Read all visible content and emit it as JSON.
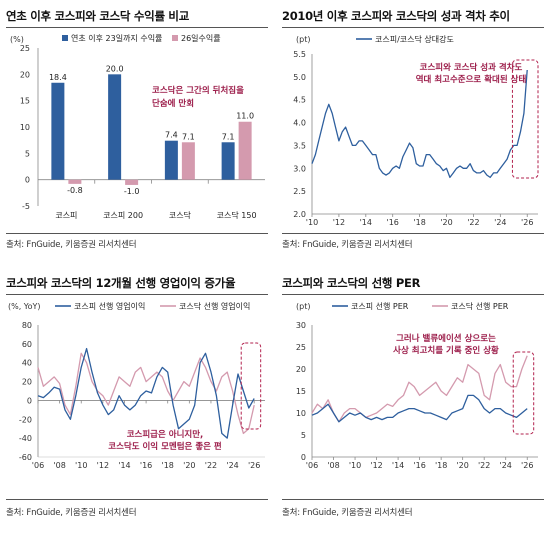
{
  "panels": [
    {
      "title": "연초 이후 코스피와 코스닥 수익률 비교",
      "source": "출처: FnGuide, 키움증권 리서치센터"
    },
    {
      "title": "2010년 이후 코스피와 코스닥의 성과 격차 추이",
      "source": "출처: FnGuide, 키움증권 리서치센터"
    },
    {
      "title": "코스피와 코스닥의 12개월 선행 영업이익 증가율",
      "source": "출처: FnGuide, 키움증권 리서치센터"
    },
    {
      "title": "코스피와 코스닥의 선행 PER",
      "source": "출처: FnGuide, 키움증권 리서치센터"
    }
  ],
  "colors": {
    "blue": "#2e5f9e",
    "pink": "#d49aae",
    "annotation": "#9c1d4a",
    "box": "#b2224e"
  },
  "chart_data": [
    {
      "type": "bar",
      "unit_label": "(%)",
      "categories": [
        "코스피",
        "코스피 200",
        "코스닥",
        "코스닥 150"
      ],
      "series": [
        {
          "name": "연초 이후 23일까지 수익률",
          "values": [
            18.4,
            20.0,
            7.4,
            7.1
          ],
          "labels": [
            "18.4",
            "20.0",
            "7.4",
            "7.1"
          ]
        },
        {
          "name": "26일수익률",
          "values": [
            -0.8,
            -1.0,
            7.1,
            11.0
          ],
          "labels": [
            "-0.8",
            "-1.0",
            "7.1",
            "11.0"
          ]
        }
      ],
      "ylim": [
        -5,
        25
      ],
      "yticks": [
        "-5",
        "0",
        "5",
        "10",
        "15",
        "20",
        "25"
      ],
      "annotation": "코스닥은 그간의 뒤처짐을\n단숨에 만회",
      "legend": "top"
    },
    {
      "type": "line",
      "unit_label": "(pt)",
      "series": [
        {
          "name": "코스피/코스닥 상대강도",
          "x": [
            2010.0,
            2010.25,
            2010.5,
            2010.75,
            2011.0,
            2011.25,
            2011.5,
            2011.75,
            2012.0,
            2012.25,
            2012.5,
            2012.75,
            2013.0,
            2013.25,
            2013.5,
            2013.75,
            2014.0,
            2014.25,
            2014.5,
            2014.75,
            2015.0,
            2015.25,
            2015.5,
            2015.75,
            2016.0,
            2016.25,
            2016.5,
            2016.75,
            2017.0,
            2017.25,
            2017.5,
            2017.75,
            2018.0,
            2018.25,
            2018.5,
            2018.75,
            2019.0,
            2019.25,
            2019.5,
            2019.75,
            2020.0,
            2020.25,
            2020.5,
            2020.75,
            2021.0,
            2021.25,
            2021.5,
            2021.75,
            2022.0,
            2022.25,
            2022.5,
            2022.75,
            2023.0,
            2023.25,
            2023.5,
            2023.75,
            2024.0,
            2024.25,
            2024.5,
            2024.75,
            2025.0,
            2025.25,
            2025.5,
            2025.75,
            2026.0
          ],
          "values": [
            3.1,
            3.3,
            3.6,
            3.9,
            4.2,
            4.4,
            4.2,
            3.9,
            3.6,
            3.8,
            3.9,
            3.7,
            3.5,
            3.5,
            3.6,
            3.6,
            3.5,
            3.4,
            3.3,
            3.3,
            3.0,
            2.9,
            2.85,
            2.9,
            3.0,
            3.05,
            3.0,
            3.25,
            3.4,
            3.55,
            3.45,
            3.1,
            3.05,
            3.05,
            3.3,
            3.3,
            3.2,
            3.1,
            3.05,
            2.95,
            3.0,
            2.8,
            2.9,
            3.0,
            3.05,
            3.0,
            3.0,
            3.1,
            2.95,
            2.9,
            2.9,
            2.95,
            2.85,
            2.8,
            2.9,
            2.9,
            3.0,
            3.1,
            3.2,
            3.4,
            3.5,
            3.5,
            3.8,
            4.2,
            5.15
          ]
        }
      ],
      "ylim": [
        2.0,
        5.5
      ],
      "yticks": [
        "2.0",
        "2.5",
        "3.0",
        "3.5",
        "4.0",
        "4.5",
        "5.0",
        "5.5"
      ],
      "xlim": [
        2010,
        2026.8
      ],
      "xticks": [
        {
          "v": 2010,
          "l": "'10"
        },
        {
          "v": 2012,
          "l": "'12"
        },
        {
          "v": 2014,
          "l": "'14"
        },
        {
          "v": 2016,
          "l": "'16"
        },
        {
          "v": 2018,
          "l": "'18"
        },
        {
          "v": 2020,
          "l": "'20"
        },
        {
          "v": 2022,
          "l": "'22"
        },
        {
          "v": 2024,
          "l": "'24"
        },
        {
          "v": 2026,
          "l": "'26"
        }
      ],
      "annotation": "코스피와 코스닥 성과 격차도\n역대 최고수준으로 확대된 상태",
      "legend": "top"
    },
    {
      "type": "line",
      "unit_label": "(%, YoY)",
      "series": [
        {
          "name": "코스피 선행 영업이익",
          "x": [
            2006.0,
            2006.5,
            2007.0,
            2007.5,
            2008.0,
            2008.5,
            2009.0,
            2009.5,
            2010.0,
            2010.5,
            2011.0,
            2011.5,
            2012.0,
            2012.5,
            2013.0,
            2013.5,
            2014.0,
            2014.5,
            2015.0,
            2015.5,
            2016.0,
            2016.5,
            2017.0,
            2017.5,
            2018.0,
            2018.5,
            2019.0,
            2019.5,
            2020.0,
            2020.5,
            2021.0,
            2021.5,
            2022.0,
            2022.5,
            2023.0,
            2023.5,
            2024.0,
            2024.5,
            2025.0,
            2025.5,
            2026.0
          ],
          "values": [
            5,
            3,
            8,
            14,
            12,
            -10,
            -20,
            5,
            35,
            55,
            30,
            8,
            -5,
            -15,
            -10,
            5,
            -5,
            -10,
            -5,
            5,
            10,
            8,
            25,
            35,
            30,
            -5,
            -30,
            -25,
            -20,
            -5,
            40,
            50,
            30,
            5,
            -35,
            -40,
            -5,
            28,
            10,
            -8,
            2
          ]
        },
        {
          "name": "코스닥 선행 영업이익",
          "x": [
            2006.0,
            2006.5,
            2007.0,
            2007.5,
            2008.0,
            2008.5,
            2009.0,
            2009.5,
            2010.0,
            2010.5,
            2011.0,
            2011.5,
            2012.0,
            2012.5,
            2013.0,
            2013.5,
            2014.0,
            2014.5,
            2015.0,
            2015.5,
            2016.0,
            2016.5,
            2017.0,
            2017.5,
            2018.0,
            2018.5,
            2019.0,
            2019.5,
            2020.0,
            2020.5,
            2021.0,
            2021.5,
            2022.0,
            2022.5,
            2023.0,
            2023.5,
            2024.0,
            2024.5,
            2025.0,
            2025.5,
            2026.0
          ],
          "values": [
            35,
            15,
            20,
            25,
            18,
            -5,
            -15,
            15,
            50,
            40,
            20,
            10,
            5,
            -5,
            10,
            25,
            20,
            15,
            30,
            35,
            20,
            25,
            30,
            25,
            10,
            0,
            10,
            20,
            15,
            30,
            45,
            35,
            20,
            10,
            25,
            30,
            10,
            -15,
            -35,
            -30,
            -5
          ]
        }
      ],
      "ylim": [
        -60,
        80
      ],
      "yticks": [
        "-60",
        "-40",
        "-20",
        "0",
        "20",
        "40",
        "60",
        "80"
      ],
      "xlim": [
        2006,
        2027
      ],
      "xticks": [
        {
          "v": 2006,
          "l": "'06"
        },
        {
          "v": 2008,
          "l": "'08"
        },
        {
          "v": 2010,
          "l": "'10"
        },
        {
          "v": 2012,
          "l": "'12"
        },
        {
          "v": 2014,
          "l": "'14"
        },
        {
          "v": 2016,
          "l": "'16"
        },
        {
          "v": 2018,
          "l": "'18"
        },
        {
          "v": 2020,
          "l": "'20"
        },
        {
          "v": 2022,
          "l": "'22"
        },
        {
          "v": 2024,
          "l": "'24"
        },
        {
          "v": 2026,
          "l": "'26"
        }
      ],
      "annotation": "코스피급은 아니지만,\n코스닥도 이익 모멘텀은 좋은 편",
      "legend": "top"
    },
    {
      "type": "line",
      "unit_label": "(pt)",
      "series": [
        {
          "name": "코스피 선행 PER",
          "x": [
            2006.0,
            2006.5,
            2007.0,
            2007.5,
            2008.0,
            2008.5,
            2009.0,
            2009.5,
            2010.0,
            2010.5,
            2011.0,
            2011.5,
            2012.0,
            2012.5,
            2013.0,
            2013.5,
            2014.0,
            2014.5,
            2015.0,
            2015.5,
            2016.0,
            2016.5,
            2017.0,
            2017.5,
            2018.0,
            2018.5,
            2019.0,
            2019.5,
            2020.0,
            2020.5,
            2021.0,
            2021.5,
            2022.0,
            2022.5,
            2023.0,
            2023.5,
            2024.0,
            2024.5,
            2025.0,
            2025.5,
            2026.0
          ],
          "values": [
            9.5,
            10,
            11,
            12,
            10,
            8,
            9,
            10,
            9.5,
            10,
            9,
            8.5,
            9,
            8.5,
            9,
            9,
            10,
            10.5,
            11,
            11,
            10.5,
            10,
            10,
            9.5,
            9,
            8.5,
            10,
            10.5,
            11,
            14,
            14,
            13,
            11,
            10,
            11,
            11,
            10,
            9.5,
            9,
            10,
            11
          ]
        },
        {
          "name": "코스닥 선행 PER",
          "x": [
            2006.0,
            2006.5,
            2007.0,
            2007.5,
            2008.0,
            2008.5,
            2009.0,
            2009.5,
            2010.0,
            2010.5,
            2011.0,
            2011.5,
            2012.0,
            2012.5,
            2013.0,
            2013.5,
            2014.0,
            2014.5,
            2015.0,
            2015.5,
            2016.0,
            2016.5,
            2017.0,
            2017.5,
            2018.0,
            2018.5,
            2019.0,
            2019.5,
            2020.0,
            2020.5,
            2021.0,
            2021.5,
            2022.0,
            2022.5,
            2023.0,
            2023.5,
            2024.0,
            2024.5,
            2025.0,
            2025.5,
            2026.0
          ],
          "values": [
            10,
            12,
            11,
            13,
            10,
            8,
            10,
            11,
            11,
            10,
            9,
            9.5,
            10,
            11,
            12,
            11.5,
            13,
            14,
            17,
            16,
            14,
            15,
            16,
            17,
            15,
            14,
            16,
            18,
            17,
            21,
            20,
            19,
            14,
            13,
            19,
            21,
            17,
            16,
            16,
            20,
            23
          ]
        }
      ],
      "ylim": [
        0,
        30
      ],
      "yticks": [
        "0",
        "5",
        "10",
        "15",
        "20",
        "25",
        "30"
      ],
      "xlim": [
        2006,
        2027
      ],
      "xticks": [
        {
          "v": 2006,
          "l": "'06"
        },
        {
          "v": 2008,
          "l": "'08"
        },
        {
          "v": 2010,
          "l": "'10"
        },
        {
          "v": 2012,
          "l": "'12"
        },
        {
          "v": 2014,
          "l": "'14"
        },
        {
          "v": 2016,
          "l": "'16"
        },
        {
          "v": 2018,
          "l": "'18"
        },
        {
          "v": 2020,
          "l": "'20"
        },
        {
          "v": 2022,
          "l": "'22"
        },
        {
          "v": 2024,
          "l": "'24"
        },
        {
          "v": 2026,
          "l": "'26"
        }
      ],
      "annotation": "그러나 밸류에이션 상으로는\n사상 최고치를 기록 중인 상황",
      "legend": "top"
    }
  ]
}
